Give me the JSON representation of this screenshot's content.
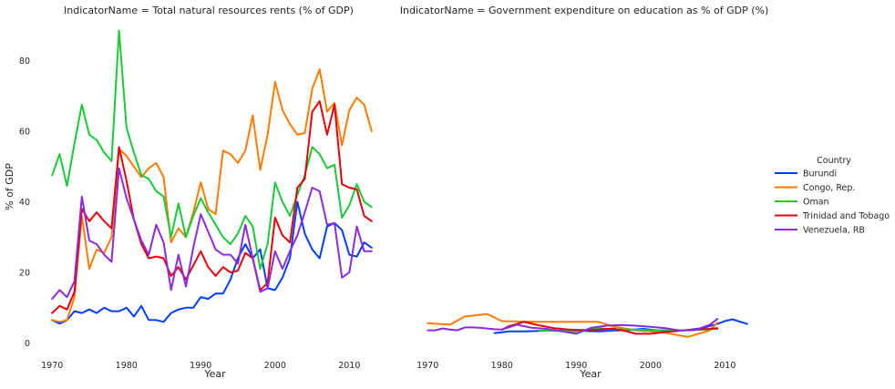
{
  "chart_data": [
    {
      "type": "line",
      "title": "IndicatorName = Total natural resources rents (% of GDP)",
      "xlabel": "Year",
      "ylabel": "% of GDP",
      "xlim": [
        1968.5,
        2014.5
      ],
      "ylim": [
        -4,
        92
      ],
      "xticks": [
        1970,
        1980,
        1990,
        2000,
        2010
      ],
      "yticks": [
        0,
        20,
        40,
        60,
        80
      ],
      "grid": false,
      "series": [
        {
          "name": "Burundi",
          "x": [
            1970,
            1971,
            1972,
            1973,
            1974,
            1975,
            1976,
            1977,
            1978,
            1979,
            1980,
            1981,
            1982,
            1983,
            1984,
            1985,
            1986,
            1987,
            1988,
            1989,
            1990,
            1991,
            1992,
            1993,
            1994,
            1995,
            1996,
            1997,
            1998,
            1999,
            2000,
            2001,
            2002,
            2003,
            2004,
            2005,
            2006,
            2007,
            2008,
            2009,
            2010,
            2011,
            2012,
            2013
          ],
          "values": [
            6.5,
            5.5,
            6.5,
            9,
            8.5,
            9.5,
            8.5,
            10,
            9,
            9,
            10,
            7.5,
            10.5,
            6.5,
            6.5,
            6,
            8.5,
            9.5,
            10,
            10,
            13,
            12.5,
            14,
            14,
            18,
            24,
            28,
            24,
            26.5,
            15.5,
            15,
            18.5,
            24,
            40,
            31,
            26.5,
            24,
            33,
            34,
            32,
            25,
            24.5,
            28.5,
            27
          ]
        },
        {
          "name": "Congo, Rep.",
          "x": [
            1970,
            1971,
            1972,
            1973,
            1974,
            1975,
            1976,
            1977,
            1978,
            1979,
            1980,
            1981,
            1982,
            1983,
            1984,
            1985,
            1986,
            1987,
            1988,
            1989,
            1990,
            1991,
            1992,
            1993,
            1994,
            1995,
            1996,
            1997,
            1998,
            1999,
            2000,
            2001,
            2002,
            2003,
            2004,
            2005,
            2006,
            2007,
            2008,
            2009,
            2010,
            2011,
            2012,
            2013
          ],
          "values": [
            6.5,
            6,
            6.5,
            13,
            36,
            21,
            26.5,
            25.5,
            30,
            55,
            53,
            50,
            47,
            49.5,
            51,
            47,
            28.5,
            32.5,
            30,
            37,
            45.5,
            38,
            36.5,
            54.5,
            53.5,
            51,
            54.5,
            64.5,
            49,
            59,
            74,
            66,
            62,
            59,
            59.5,
            72,
            77.5,
            65.5,
            68,
            56,
            66,
            69.5,
            67.5,
            60
          ]
        },
        {
          "name": "Oman",
          "x": [
            1970,
            1971,
            1972,
            1973,
            1974,
            1975,
            1976,
            1977,
            1978,
            1979,
            1980,
            1981,
            1982,
            1983,
            1984,
            1985,
            1986,
            1987,
            1988,
            1989,
            1990,
            1991,
            1992,
            1993,
            1994,
            1995,
            1996,
            1997,
            1998,
            1999,
            2000,
            2001,
            2002,
            2003,
            2004,
            2005,
            2006,
            2007,
            2008,
            2009,
            2010,
            2011,
            2012,
            2013
          ],
          "values": [
            47.5,
            53.5,
            44.5,
            56.5,
            67.5,
            59,
            57.5,
            54,
            51.5,
            88.5,
            61,
            54,
            47.5,
            46.5,
            43,
            41.5,
            30,
            39.5,
            30,
            36,
            41,
            37,
            33.5,
            30,
            28,
            31,
            36,
            33,
            21,
            28,
            45.5,
            40,
            36,
            42,
            47.5,
            55.5,
            53.5,
            49.5,
            50.5,
            35.5,
            39,
            45,
            40,
            38.5
          ]
        },
        {
          "name": "Trinidad and Tobago",
          "x": [
            1970,
            1971,
            1972,
            1973,
            1974,
            1975,
            1976,
            1977,
            1978,
            1979,
            1980,
            1981,
            1982,
            1983,
            1984,
            1985,
            1986,
            1987,
            1988,
            1989,
            1990,
            1991,
            1992,
            1993,
            1994,
            1995,
            1996,
            1997,
            1998,
            1999,
            2000,
            2001,
            2002,
            2003,
            2004,
            2005,
            2006,
            2007,
            2008,
            2009,
            2010,
            2011,
            2012,
            2013
          ],
          "values": [
            8.5,
            10.5,
            9.5,
            14.5,
            38,
            34.5,
            37,
            34.5,
            32.5,
            55.5,
            46,
            35,
            28,
            24,
            24.5,
            24,
            19,
            21.5,
            18,
            22,
            26,
            21.5,
            19,
            21.5,
            20,
            20.5,
            25.5,
            24,
            15,
            17,
            35.5,
            30.5,
            28.5,
            44,
            46.5,
            65.5,
            68.5,
            59,
            67.5,
            45,
            44,
            43.5,
            36,
            34.5
          ]
        },
        {
          "name": "Venezuela, RB",
          "x": [
            1970,
            1971,
            1972,
            1973,
            1974,
            1975,
            1976,
            1977,
            1978,
            1979,
            1980,
            1981,
            1982,
            1983,
            1984,
            1985,
            1986,
            1987,
            1988,
            1989,
            1990,
            1991,
            1992,
            1993,
            1994,
            1995,
            1996,
            1997,
            1998,
            1999,
            2000,
            2001,
            2002,
            2003,
            2004,
            2005,
            2006,
            2007,
            2008,
            2009,
            2010,
            2011,
            2012,
            2013
          ],
          "values": [
            12.5,
            15,
            13,
            17.5,
            41.5,
            29,
            28,
            25,
            23,
            49.5,
            41,
            35,
            29,
            25,
            33.5,
            28.5,
            15,
            25,
            16,
            27,
            36.5,
            31.5,
            26.5,
            25,
            25,
            22.5,
            33.5,
            24,
            14.5,
            15.5,
            26,
            21,
            26,
            30.5,
            37,
            44,
            43,
            33.5,
            34,
            18.5,
            20,
            33,
            26,
            26
          ]
        }
      ]
    },
    {
      "type": "line",
      "title": "IndicatorName = Government expenditure on education as % of GDP (%)",
      "xlabel": "Year",
      "ylabel": "",
      "xlim": [
        1968.5,
        2014.5
      ],
      "ylim": [
        -4,
        92
      ],
      "xticks": [
        1970,
        1980,
        1990,
        2000,
        2010
      ],
      "grid": false,
      "series": [
        {
          "name": "Burundi",
          "x": [
            1979,
            1981,
            1983,
            1985,
            1987,
            1989,
            1991,
            1993,
            1995,
            1997,
            1999,
            2001,
            2003,
            2005,
            2007,
            2009,
            2010,
            2011,
            2013
          ],
          "values": [
            2.8,
            3.3,
            3.3,
            3.4,
            3.5,
            3.4,
            3.4,
            3.3,
            3.5,
            3.7,
            4,
            3.6,
            3.3,
            3.7,
            4.2,
            5.4,
            6.2,
            6.7,
            5.4
          ]
        },
        {
          "name": "Congo, Rep.",
          "x": [
            1970,
            1973,
            1975,
            1978,
            1980,
            1985,
            1990,
            1993,
            1995,
            1998,
            2000,
            2002,
            2005,
            2008,
            2009
          ],
          "values": [
            5.6,
            5.2,
            7.5,
            8.2,
            6.2,
            6,
            6,
            6,
            4.7,
            3.6,
            3.3,
            2.9,
            1.7,
            3.6,
            5.8
          ]
        },
        {
          "name": "Oman",
          "x": [
            1985,
            1988,
            1990,
            1993,
            1995,
            1998,
            2000,
            2003,
            2005,
            2008,
            2009
          ],
          "values": [
            3.5,
            3.4,
            3.2,
            4.2,
            3.9,
            3.8,
            3.6,
            3.7,
            3.6,
            3.9,
            4
          ]
        },
        {
          "name": "Trinidad and Tobago",
          "x": [
            1980,
            1981,
            1983,
            1985,
            1987,
            1989,
            1991,
            1993,
            1995,
            1997,
            1998,
            2000,
            2002,
            2004,
            2006,
            2008,
            2009
          ],
          "values": [
            3.8,
            4.8,
            6,
            5,
            4.2,
            3.8,
            3.7,
            3.8,
            4.1,
            3.2,
            2.6,
            2.6,
            3.1,
            3.5,
            3.8,
            4,
            4.2
          ]
        },
        {
          "name": "Venezuela, RB",
          "x": [
            1970,
            1971,
            1972,
            1973,
            1974,
            1975,
            1976,
            1977,
            1978,
            1979,
            1980,
            1982,
            1984,
            1986,
            1988,
            1990,
            1992,
            1994,
            1996,
            1998,
            2000,
            2002,
            2004,
            2006,
            2008,
            2009
          ],
          "values": [
            3.6,
            3.6,
            4.1,
            3.8,
            3.6,
            4.4,
            4.4,
            4.3,
            4.1,
            3.9,
            3.8,
            5.2,
            4.3,
            4,
            3.3,
            2.6,
            4.3,
            4.9,
            5.1,
            4.9,
            4.6,
            4.2,
            3.5,
            3.7,
            5.2,
            6.8
          ]
        }
      ]
    }
  ],
  "legend": {
    "title": "Country",
    "placement": "right",
    "items": [
      {
        "label": "Burundi",
        "color": "#023eff"
      },
      {
        "label": "Congo, Rep.",
        "color": "#ff7c00"
      },
      {
        "label": "Oman",
        "color": "#1ac938"
      },
      {
        "label": "Trinidad and Tobago",
        "color": "#e8000b"
      },
      {
        "label": "Venezuela, RB",
        "color": "#8b2be2"
      }
    ]
  }
}
